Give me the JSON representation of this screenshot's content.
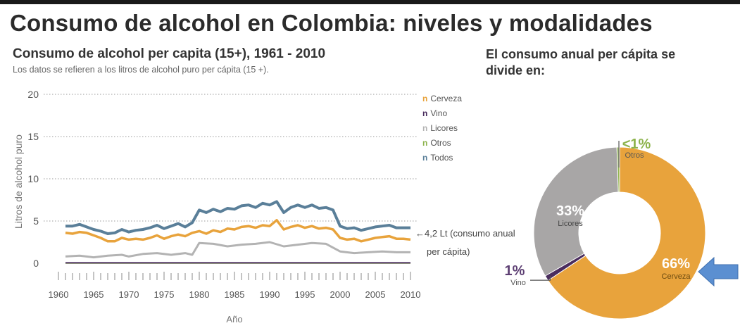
{
  "main_title": "Consumo de alcohol en Colombia: niveles y modalidades",
  "line_chart": {
    "title": "Consumo de alcohol per capita (15+), 1961 - 2010",
    "subtitle": "Los datos se refieren a los litros de alcohol puro per cápita (15 +).",
    "annotation_line1": "4,2 Lt (consumo anual",
    "annotation_line2": "per cápita)"
  },
  "pie_chart": {
    "title": "El consumo anual per cápita se divide en:"
  },
  "chart_data": [
    {
      "type": "line",
      "title": "Consumo de alcohol per capita (15+), 1961 - 2010",
      "xlabel": "Año",
      "ylabel": "Litros de alcohol puro",
      "xlim": [
        1960,
        2010
      ],
      "ylim": [
        0,
        20
      ],
      "yticks": [
        0,
        5,
        10,
        15,
        20
      ],
      "xticks": [
        1960,
        1965,
        1970,
        1975,
        1980,
        1985,
        1990,
        1995,
        2000,
        2005,
        2010
      ],
      "grid": "horizontal dotted",
      "legend": "top-right",
      "series": [
        {
          "name": "Cerveza",
          "color": "#e8a33c",
          "points": [
            [
              1961,
              3.6
            ],
            [
              1962,
              3.5
            ],
            [
              1963,
              3.7
            ],
            [
              1964,
              3.6
            ],
            [
              1965,
              3.3
            ],
            [
              1966,
              3.0
            ],
            [
              1967,
              2.6
            ],
            [
              1968,
              2.6
            ],
            [
              1969,
              3.0
            ],
            [
              1970,
              2.8
            ],
            [
              1971,
              2.9
            ],
            [
              1972,
              2.8
            ],
            [
              1973,
              3.0
            ],
            [
              1974,
              3.3
            ],
            [
              1975,
              2.9
            ],
            [
              1976,
              3.2
            ],
            [
              1977,
              3.4
            ],
            [
              1978,
              3.2
            ],
            [
              1979,
              3.6
            ],
            [
              1980,
              3.8
            ],
            [
              1981,
              3.5
            ],
            [
              1982,
              3.9
            ],
            [
              1983,
              3.7
            ],
            [
              1984,
              4.1
            ],
            [
              1985,
              4.0
            ],
            [
              1986,
              4.3
            ],
            [
              1987,
              4.4
            ],
            [
              1988,
              4.2
            ],
            [
              1989,
              4.5
            ],
            [
              1990,
              4.4
            ],
            [
              1991,
              5.1
            ],
            [
              1992,
              4.0
            ],
            [
              1993,
              4.3
            ],
            [
              1994,
              4.5
            ],
            [
              1995,
              4.2
            ],
            [
              1996,
              4.4
            ],
            [
              1997,
              4.1
            ],
            [
              1998,
              4.2
            ],
            [
              1999,
              4.0
            ],
            [
              2000,
              3.0
            ],
            [
              2001,
              2.8
            ],
            [
              2002,
              2.9
            ],
            [
              2003,
              2.6
            ],
            [
              2004,
              2.8
            ],
            [
              2005,
              3.0
            ],
            [
              2006,
              3.1
            ],
            [
              2007,
              3.2
            ],
            [
              2008,
              2.9
            ],
            [
              2009,
              2.9
            ],
            [
              2010,
              2.8
            ]
          ]
        },
        {
          "name": "Vino",
          "color": "#4a2d5e",
          "points": [
            [
              1961,
              0.05
            ],
            [
              1970,
              0.05
            ],
            [
              1980,
              0.05
            ],
            [
              1990,
              0.05
            ],
            [
              2000,
              0.05
            ],
            [
              2010,
              0.05
            ]
          ]
        },
        {
          "name": "Licores",
          "color": "#b3b3b3",
          "points": [
            [
              1961,
              0.8
            ],
            [
              1963,
              0.9
            ],
            [
              1965,
              0.7
            ],
            [
              1967,
              0.9
            ],
            [
              1969,
              1.0
            ],
            [
              1970,
              0.8
            ],
            [
              1972,
              1.1
            ],
            [
              1974,
              1.2
            ],
            [
              1976,
              1.0
            ],
            [
              1978,
              1.2
            ],
            [
              1979,
              1.0
            ],
            [
              1980,
              2.4
            ],
            [
              1982,
              2.3
            ],
            [
              1984,
              2.0
            ],
            [
              1986,
              2.2
            ],
            [
              1988,
              2.3
            ],
            [
              1990,
              2.5
            ],
            [
              1992,
              2.0
            ],
            [
              1994,
              2.2
            ],
            [
              1996,
              2.4
            ],
            [
              1998,
              2.3
            ],
            [
              2000,
              1.4
            ],
            [
              2002,
              1.2
            ],
            [
              2004,
              1.3
            ],
            [
              2006,
              1.4
            ],
            [
              2008,
              1.3
            ],
            [
              2010,
              1.3
            ]
          ]
        },
        {
          "name": "Otros",
          "color": "#8db34c",
          "points": [
            [
              1961,
              0.02
            ],
            [
              1980,
              0.02
            ],
            [
              2000,
              0.02
            ],
            [
              2010,
              0.02
            ]
          ]
        },
        {
          "name": "Todos",
          "color": "#5a7f99",
          "points": [
            [
              1961,
              4.4
            ],
            [
              1962,
              4.4
            ],
            [
              1963,
              4.6
            ],
            [
              1964,
              4.3
            ],
            [
              1965,
              4.0
            ],
            [
              1966,
              3.8
            ],
            [
              1967,
              3.5
            ],
            [
              1968,
              3.6
            ],
            [
              1969,
              4.0
            ],
            [
              1970,
              3.7
            ],
            [
              1971,
              3.9
            ],
            [
              1972,
              4.0
            ],
            [
              1973,
              4.2
            ],
            [
              1974,
              4.5
            ],
            [
              1975,
              4.1
            ],
            [
              1976,
              4.4
            ],
            [
              1977,
              4.7
            ],
            [
              1978,
              4.3
            ],
            [
              1979,
              4.8
            ],
            [
              1980,
              6.3
            ],
            [
              1981,
              6.0
            ],
            [
              1982,
              6.4
            ],
            [
              1983,
              6.1
            ],
            [
              1984,
              6.5
            ],
            [
              1985,
              6.4
            ],
            [
              1986,
              6.8
            ],
            [
              1987,
              6.9
            ],
            [
              1988,
              6.6
            ],
            [
              1989,
              7.1
            ],
            [
              1990,
              6.9
            ],
            [
              1991,
              7.3
            ],
            [
              1992,
              6.0
            ],
            [
              1993,
              6.6
            ],
            [
              1994,
              6.9
            ],
            [
              1995,
              6.6
            ],
            [
              1996,
              6.9
            ],
            [
              1997,
              6.5
            ],
            [
              1998,
              6.6
            ],
            [
              1999,
              6.3
            ],
            [
              2000,
              4.4
            ],
            [
              2001,
              4.1
            ],
            [
              2002,
              4.2
            ],
            [
              2003,
              3.9
            ],
            [
              2004,
              4.1
            ],
            [
              2005,
              4.3
            ],
            [
              2006,
              4.4
            ],
            [
              2007,
              4.5
            ],
            [
              2008,
              4.2
            ],
            [
              2009,
              4.2
            ],
            [
              2010,
              4.2
            ]
          ]
        }
      ]
    },
    {
      "type": "pie",
      "style": "donut",
      "title": "El consumo anual per cápita se divide en:",
      "slices": [
        {
          "label": "Cerveza",
          "value": 66,
          "display": "66%",
          "color": "#e8a33c"
        },
        {
          "label": "Vino",
          "value": 1,
          "display": "1%",
          "color": "#4a2d5e"
        },
        {
          "label": "Licores",
          "value": 33,
          "display": "33%",
          "color": "#a8a6a6"
        },
        {
          "label": "Otros",
          "value": 0.5,
          "display": "<1%",
          "color": "#8db34c"
        }
      ]
    }
  ],
  "colors": {
    "arrow": "#5b8fd1",
    "title": "#2b2b2b"
  }
}
